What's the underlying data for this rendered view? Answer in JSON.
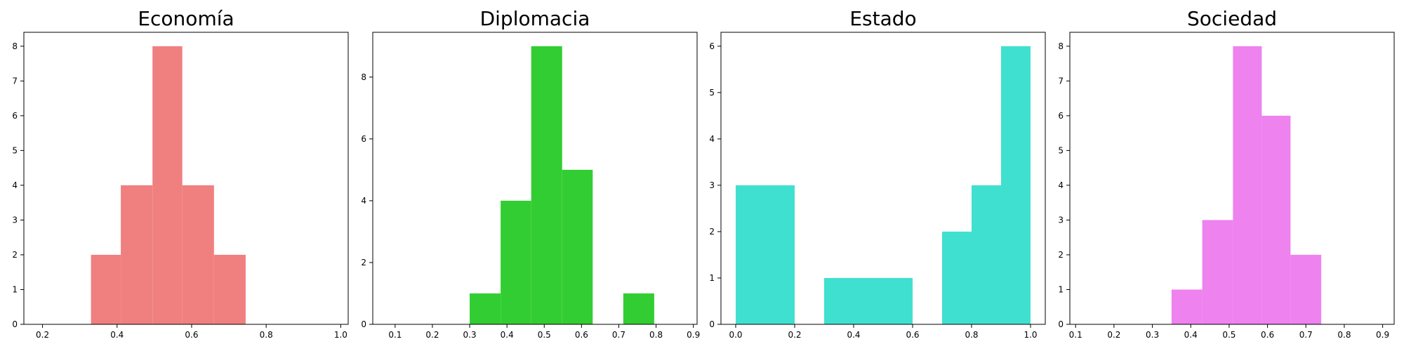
{
  "figure_colors": [
    "#f08080",
    "#32cd32",
    "#40e0d0",
    "#ee82ee"
  ],
  "chart_data": [
    {
      "type": "bar",
      "title": "Economía",
      "color": "#f08080",
      "xlim": [
        0.15,
        1.02
      ],
      "ylim": [
        0,
        8.4
      ],
      "xticks": [
        0.2,
        0.4,
        0.6,
        0.8,
        1.0
      ],
      "xtick_labels": [
        "0.2",
        "0.4",
        "0.6",
        "0.8",
        "1.0"
      ],
      "yticks": [
        0,
        1,
        2,
        3,
        4,
        5,
        6,
        7,
        8
      ],
      "bins": [
        {
          "x0": 0.33,
          "x1": 0.41,
          "count": 2
        },
        {
          "x0": 0.41,
          "x1": 0.495,
          "count": 4
        },
        {
          "x0": 0.495,
          "x1": 0.575,
          "count": 8
        },
        {
          "x0": 0.575,
          "x1": 0.66,
          "count": 4
        },
        {
          "x0": 0.66,
          "x1": 0.745,
          "count": 2
        }
      ]
    },
    {
      "type": "bar",
      "title": "Diplomacia",
      "color": "#32cd32",
      "xlim": [
        0.04,
        0.91
      ],
      "ylim": [
        0,
        9.45
      ],
      "xticks": [
        0.1,
        0.2,
        0.3,
        0.4,
        0.5,
        0.6,
        0.7,
        0.8,
        0.9
      ],
      "xtick_labels": [
        "0.1",
        "0.2",
        "0.3",
        "0.4",
        "0.5",
        "0.6",
        "0.7",
        "0.8",
        "0.9"
      ],
      "yticks": [
        0,
        2,
        4,
        6,
        8
      ],
      "bins": [
        {
          "x0": 0.3,
          "x1": 0.383,
          "count": 1
        },
        {
          "x0": 0.383,
          "x1": 0.465,
          "count": 4
        },
        {
          "x0": 0.465,
          "x1": 0.548,
          "count": 9
        },
        {
          "x0": 0.548,
          "x1": 0.63,
          "count": 5
        },
        {
          "x0": 0.63,
          "x1": 0.712,
          "count": 0
        },
        {
          "x0": 0.712,
          "x1": 0.795,
          "count": 1
        }
      ]
    },
    {
      "type": "bar",
      "title": "Estado",
      "color": "#40e0d0",
      "xlim": [
        -0.05,
        1.05
      ],
      "ylim": [
        0,
        6.3
      ],
      "xticks": [
        0.0,
        0.2,
        0.4,
        0.6,
        0.8,
        1.0
      ],
      "xtick_labels": [
        "0.0",
        "0.2",
        "0.4",
        "0.6",
        "0.8",
        "1.0"
      ],
      "yticks": [
        0,
        1,
        2,
        3,
        4,
        5,
        6
      ],
      "bins": [
        {
          "x0": 0.0,
          "x1": 0.2,
          "count": 3
        },
        {
          "x0": 0.3,
          "x1": 0.6,
          "count": 1
        },
        {
          "x0": 0.7,
          "x1": 0.8,
          "count": 2
        },
        {
          "x0": 0.8,
          "x1": 0.9,
          "count": 3
        },
        {
          "x0": 0.9,
          "x1": 1.0,
          "count": 6
        }
      ]
    },
    {
      "type": "bar",
      "title": "Sociedad",
      "color": "#ee82ee",
      "xlim": [
        0.085,
        0.93
      ],
      "ylim": [
        0,
        8.4
      ],
      "xticks": [
        0.1,
        0.2,
        0.3,
        0.4,
        0.5,
        0.6,
        0.7,
        0.8,
        0.9
      ],
      "xtick_labels": [
        "0.1",
        "0.2",
        "0.3",
        "0.4",
        "0.5",
        "0.6",
        "0.7",
        "0.8",
        "0.9"
      ],
      "yticks": [
        0,
        1,
        2,
        3,
        4,
        5,
        6,
        7,
        8
      ],
      "bins": [
        {
          "x0": 0.35,
          "x1": 0.43,
          "count": 1
        },
        {
          "x0": 0.43,
          "x1": 0.51,
          "count": 3
        },
        {
          "x0": 0.51,
          "x1": 0.585,
          "count": 8
        },
        {
          "x0": 0.585,
          "x1": 0.66,
          "count": 6
        },
        {
          "x0": 0.66,
          "x1": 0.74,
          "count": 2
        }
      ]
    }
  ]
}
